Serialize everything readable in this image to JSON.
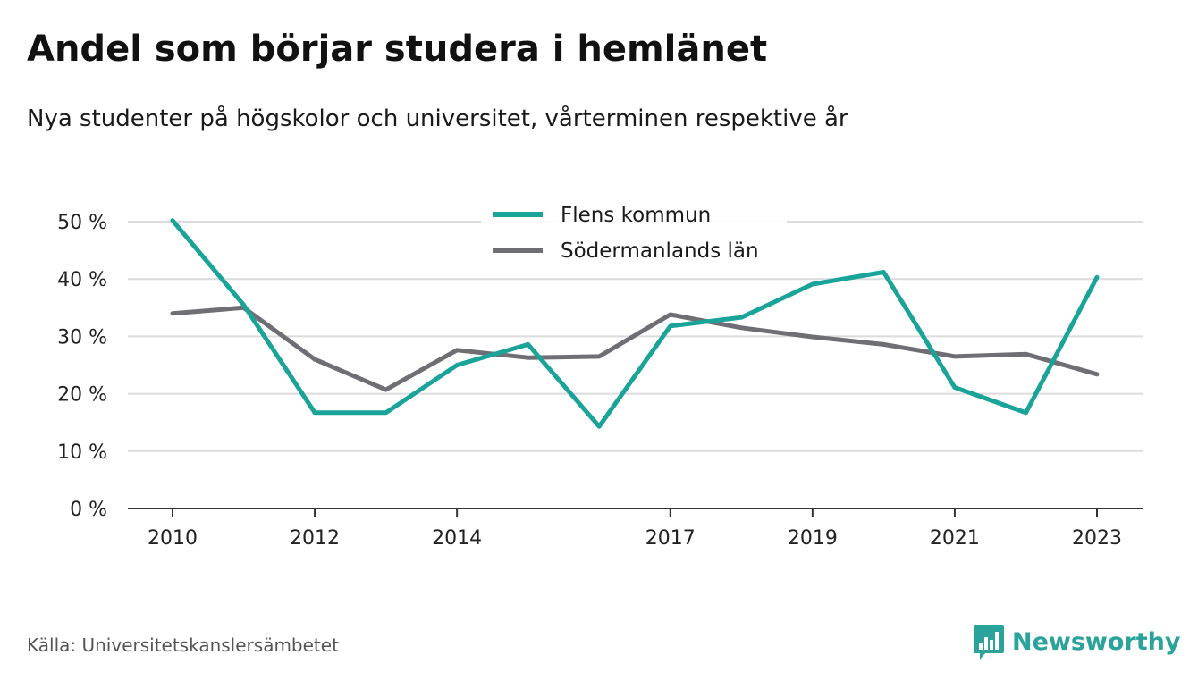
{
  "chart_data": {
    "type": "line",
    "title": "Andel som börjar studera i hemlänet",
    "subtitle": "Nya studenter på högskolor och universitet, vårterminen respektive år",
    "x": [
      2010,
      2011,
      2012,
      2013,
      2014,
      2015,
      2016,
      2017,
      2018,
      2019,
      2020,
      2021,
      2022,
      2023
    ],
    "x_tick_labels": [
      "2010",
      "2012",
      "2014",
      "2017",
      "2019",
      "2021",
      "2023"
    ],
    "x_tick_values": [
      2010,
      2012,
      2014,
      2017,
      2019,
      2021,
      2023
    ],
    "y_tick_values": [
      0,
      10,
      20,
      30,
      40,
      50
    ],
    "y_tick_labels": [
      "0 %",
      "10 %",
      "20 %",
      "30 %",
      "40 %",
      "50 %"
    ],
    "ylim": [
      0,
      50
    ],
    "grid": true,
    "legend_position": "top-center",
    "series": [
      {
        "name": "Flens kommun",
        "color": "#1aa399",
        "values": [
          50.2,
          35.5,
          16.7,
          16.7,
          25.0,
          28.6,
          14.3,
          31.8,
          33.3,
          39.1,
          41.2,
          21.1,
          16.7,
          40.3
        ]
      },
      {
        "name": "Södermanlands län",
        "color": "#6e6e74",
        "values": [
          34.0,
          35.0,
          26.0,
          20.7,
          27.6,
          26.3,
          26.5,
          33.8,
          31.5,
          29.9,
          28.6,
          26.5,
          26.9,
          23.4
        ]
      }
    ]
  },
  "source": "Källa: Universitetskanslersämbetet",
  "logo": {
    "text": "Newsworthy",
    "icon": "bar-chart-speech-icon",
    "color": "#2aa39a"
  }
}
